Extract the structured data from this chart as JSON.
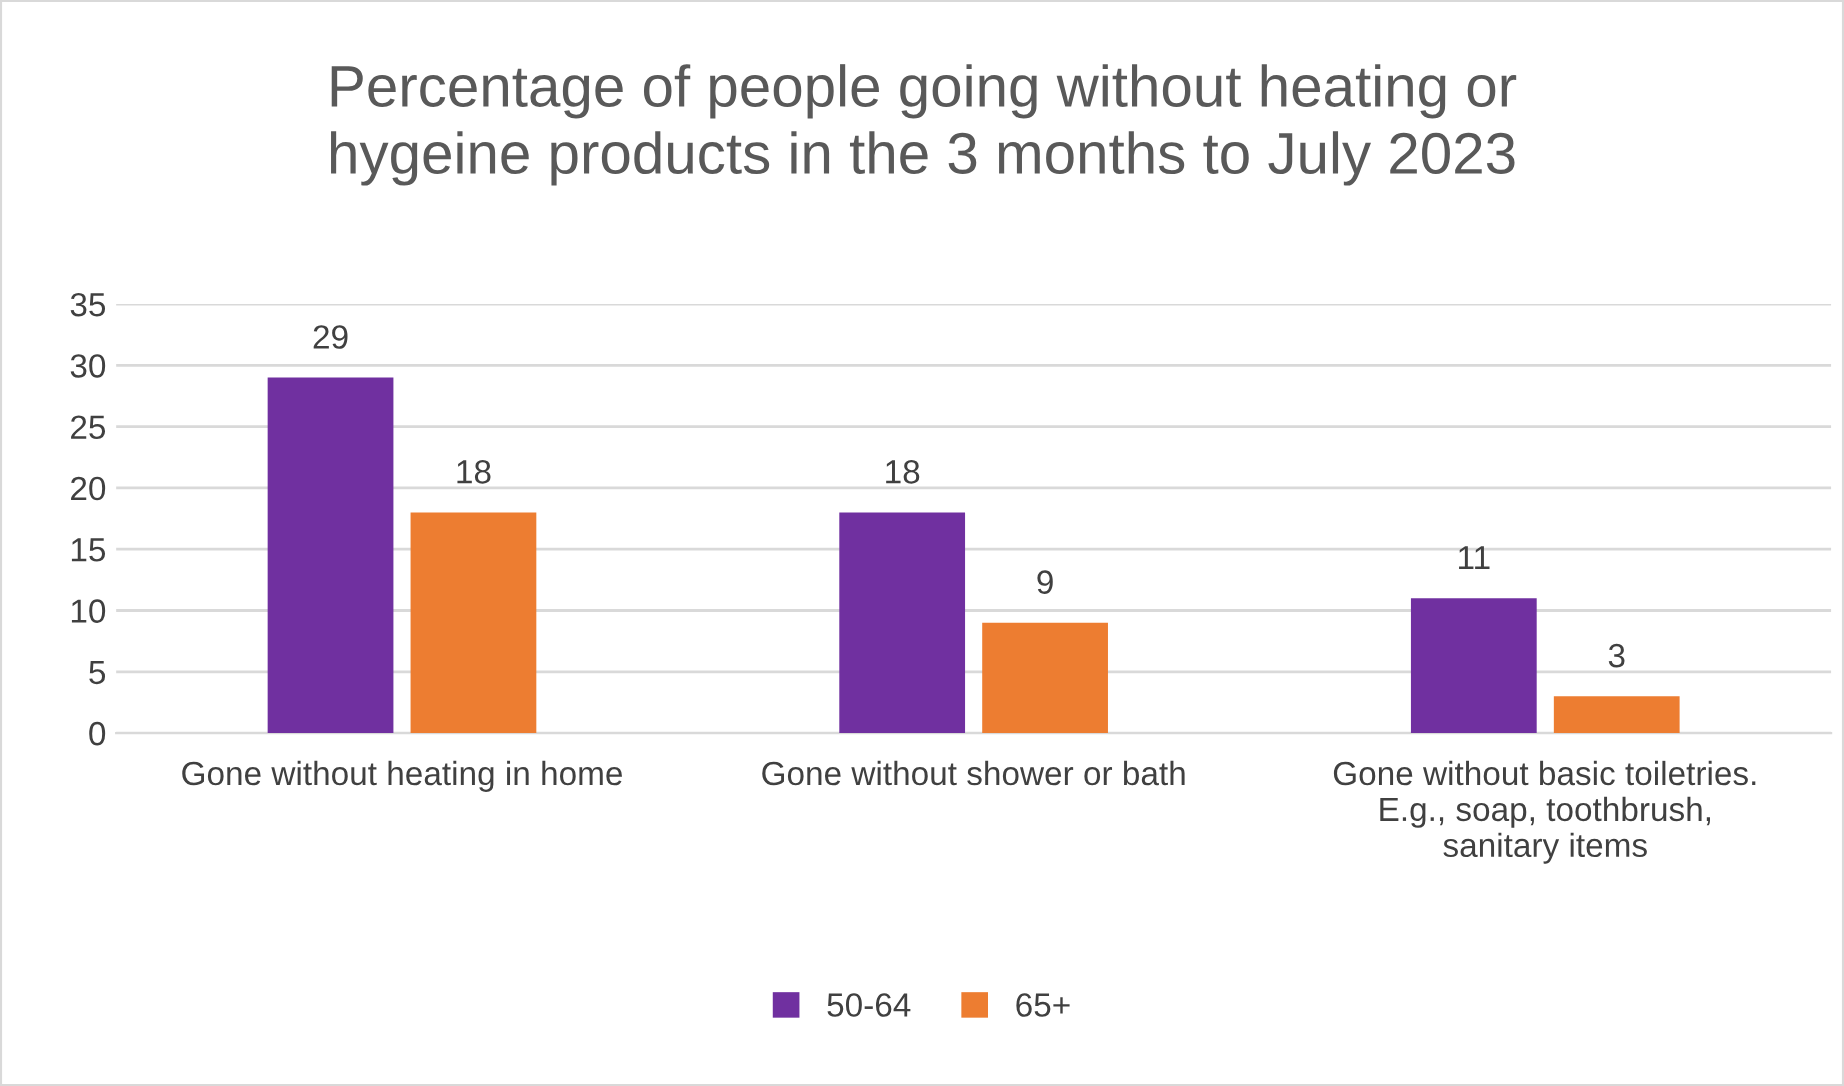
{
  "chart_data": {
    "type": "bar",
    "title": "Percentage of people going without heating or hygeine products in the 3 months to July 2023",
    "categories": [
      "Gone without heating in home",
      "Gone without shower or bath",
      "Gone without basic toiletries. E.g., soap, toothbrush, sanitary items"
    ],
    "series": [
      {
        "name": "50-64",
        "color": "#7030a0",
        "values": [
          29,
          18,
          11
        ]
      },
      {
        "name": "65+",
        "color": "#ed7d31",
        "values": [
          18,
          9,
          3
        ]
      }
    ],
    "ylim": [
      0,
      35
    ],
    "yticks": [
      0,
      5,
      10,
      15,
      20,
      25,
      30,
      35
    ],
    "grid": "y",
    "legend": "bottom",
    "data_labels": true
  }
}
